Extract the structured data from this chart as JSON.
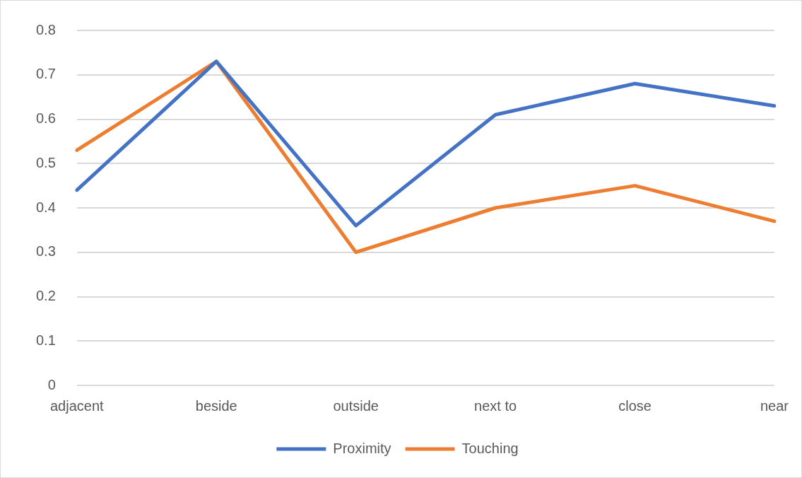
{
  "chart_data": {
    "type": "line",
    "categories": [
      "adjacent",
      "beside",
      "outside",
      "next to",
      "close",
      "near"
    ],
    "series": [
      {
        "name": "Proximity",
        "color": "#4472c4",
        "values": [
          0.44,
          0.73,
          0.36,
          0.61,
          0.68,
          0.63
        ]
      },
      {
        "name": "Touching",
        "color": "#ed7d31",
        "values": [
          0.53,
          0.73,
          0.3,
          0.4,
          0.45,
          0.37
        ]
      }
    ],
    "ylim": [
      0,
      0.8
    ],
    "yticks": [
      0,
      0.1,
      0.2,
      0.3,
      0.4,
      0.5,
      0.6,
      0.7,
      0.8
    ],
    "grid": "y",
    "legend": "bottom",
    "marker": "none",
    "line_style": "solid"
  }
}
